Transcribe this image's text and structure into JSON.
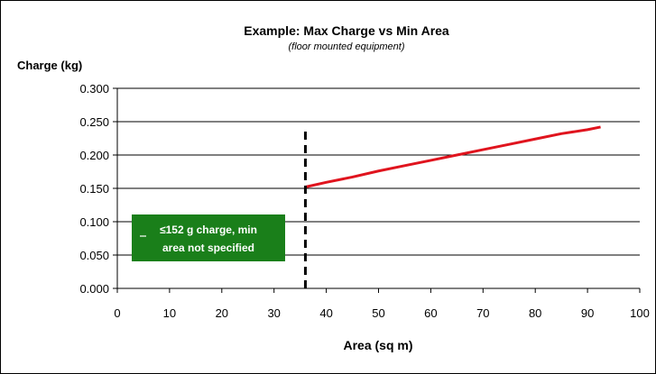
{
  "chart_data": {
    "type": "line",
    "title": "Example: Max Charge vs Min Area",
    "subtitle": "(floor mounted equipment)",
    "ylabel": "Charge (kg)",
    "xlabel": "Area (sq m)",
    "xlim": [
      0,
      100
    ],
    "ylim": [
      0,
      0.3
    ],
    "x_ticks": [
      0,
      10,
      20,
      30,
      40,
      50,
      60,
      70,
      80,
      90,
      100
    ],
    "x_tick_labels": [
      "0",
      "10",
      "20",
      "30",
      "40",
      "50",
      "60",
      "70",
      "80",
      "90",
      "100"
    ],
    "y_ticks": [
      0,
      0.05,
      0.1,
      0.15,
      0.2,
      0.25,
      0.3
    ],
    "y_tick_labels": [
      "0.000",
      "0.050",
      "0.100",
      "0.150",
      "0.200",
      "0.250",
      "0.300"
    ],
    "grid": "horizontal",
    "series": [
      {
        "color": "#e0141e",
        "x": [
          36,
          40,
          45,
          50,
          55,
          60,
          65,
          70,
          75,
          80,
          85,
          90,
          92.5
        ],
        "y": [
          0.152,
          0.159,
          0.167,
          0.176,
          0.184,
          0.192,
          0.2,
          0.208,
          0.216,
          0.224,
          0.232,
          0.238,
          0.242
        ]
      }
    ],
    "reference_line": {
      "x": 36,
      "style": "dashed",
      "color": "#000000"
    },
    "annotation": {
      "lines": [
        "≤152 g charge, min",
        "area not specified"
      ],
      "background": "#1a7f1a",
      "text_color": "#ffffff"
    }
  }
}
